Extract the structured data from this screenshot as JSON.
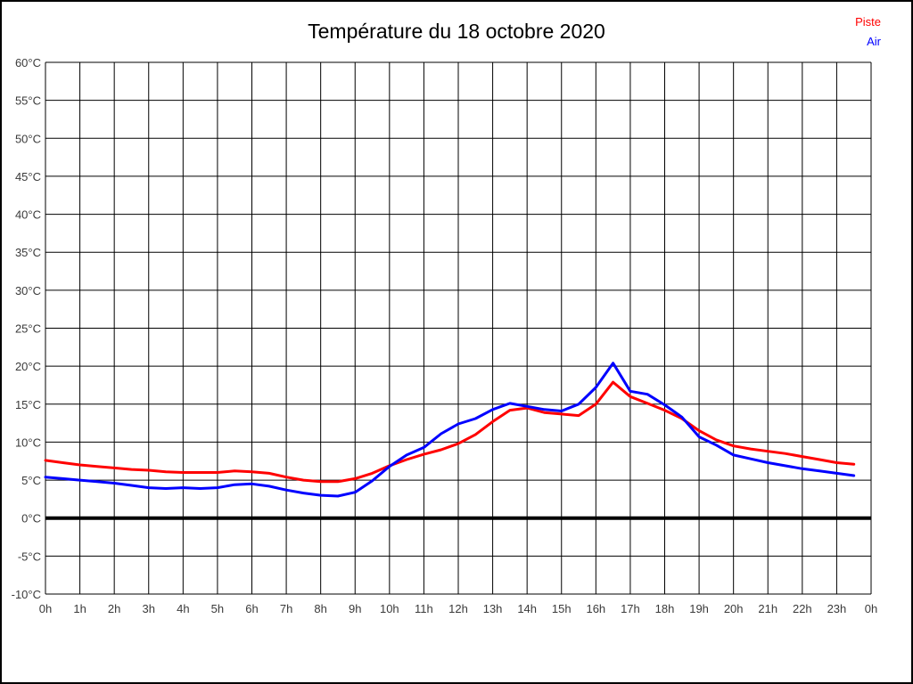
{
  "page": {
    "title": "Température du 18 octobre 2020"
  },
  "legend": [
    {
      "label": "Piste",
      "color": "#ff0000"
    },
    {
      "label": "Air",
      "color": "#0000ff"
    }
  ],
  "chart_data": {
    "type": "line",
    "title": "Température du 18 octobre 2020",
    "xlabel": "",
    "ylabel": "",
    "xlim": [
      0,
      24
    ],
    "ylim": [
      -10,
      60
    ],
    "grid": {
      "on": true,
      "x_step_hours": 1,
      "y_step_degrees": 5,
      "color": "#000000"
    },
    "emphasized_y_value": 0,
    "legend_position": "top-right",
    "y_ticks": [
      60,
      55,
      50,
      45,
      40,
      35,
      30,
      25,
      20,
      15,
      10,
      5,
      0,
      -5,
      -10
    ],
    "y_tick_suffix": "°C",
    "x_tick_hours": [
      0,
      1,
      2,
      3,
      4,
      5,
      6,
      7,
      8,
      9,
      10,
      11,
      12,
      13,
      14,
      15,
      16,
      17,
      18,
      19,
      20,
      21,
      22,
      23,
      24
    ],
    "x_tick_labels": [
      "0h",
      "1h",
      "2h",
      "3h",
      "4h",
      "5h",
      "6h",
      "7h",
      "8h",
      "9h",
      "10h",
      "11h",
      "12h",
      "13h",
      "14h",
      "15h",
      "16h",
      "17h",
      "18h",
      "19h",
      "20h",
      "21h",
      "22h",
      "23h",
      "0h"
    ],
    "x": [
      0,
      0.5,
      1,
      1.5,
      2,
      2.5,
      3,
      3.5,
      4,
      4.5,
      5,
      5.5,
      6,
      6.5,
      7,
      7.5,
      8,
      8.5,
      9,
      9.5,
      10,
      10.5,
      11,
      11.5,
      12,
      12.5,
      13,
      13.5,
      14,
      14.5,
      15,
      15.5,
      16,
      16.5,
      17,
      17.5,
      18,
      18.5,
      19,
      19.5,
      20,
      20.5,
      21,
      21.5,
      22,
      22.5,
      23,
      23.5
    ],
    "series": [
      {
        "name": "Piste",
        "color": "#ff0000",
        "values": [
          7.6,
          7.3,
          7.0,
          6.8,
          6.6,
          6.4,
          6.3,
          6.1,
          6.0,
          6.0,
          6.0,
          6.2,
          6.1,
          5.9,
          5.4,
          5.0,
          4.8,
          4.8,
          5.2,
          5.9,
          6.9,
          7.7,
          8.4,
          9.0,
          9.8,
          11.0,
          12.7,
          14.2,
          14.5,
          13.9,
          13.7,
          13.5,
          15.0,
          17.9,
          16.0,
          15.1,
          14.2,
          13.1,
          11.5,
          10.3,
          9.5,
          9.1,
          8.8,
          8.5,
          8.1,
          7.7,
          7.3,
          7.1
        ]
      },
      {
        "name": "Air",
        "color": "#0000ff",
        "values": [
          5.4,
          5.2,
          5.0,
          4.8,
          4.6,
          4.3,
          4.0,
          3.9,
          4.0,
          3.9,
          4.0,
          4.4,
          4.5,
          4.2,
          3.7,
          3.3,
          3.0,
          2.9,
          3.4,
          4.9,
          6.8,
          8.3,
          9.3,
          11.1,
          12.4,
          13.1,
          14.3,
          15.1,
          14.7,
          14.3,
          14.1,
          15.0,
          17.2,
          20.4,
          16.7,
          16.3,
          14.9,
          13.3,
          10.7,
          9.6,
          8.3,
          7.8,
          7.3,
          6.9,
          6.5,
          6.2,
          5.9,
          5.6
        ]
      }
    ]
  }
}
